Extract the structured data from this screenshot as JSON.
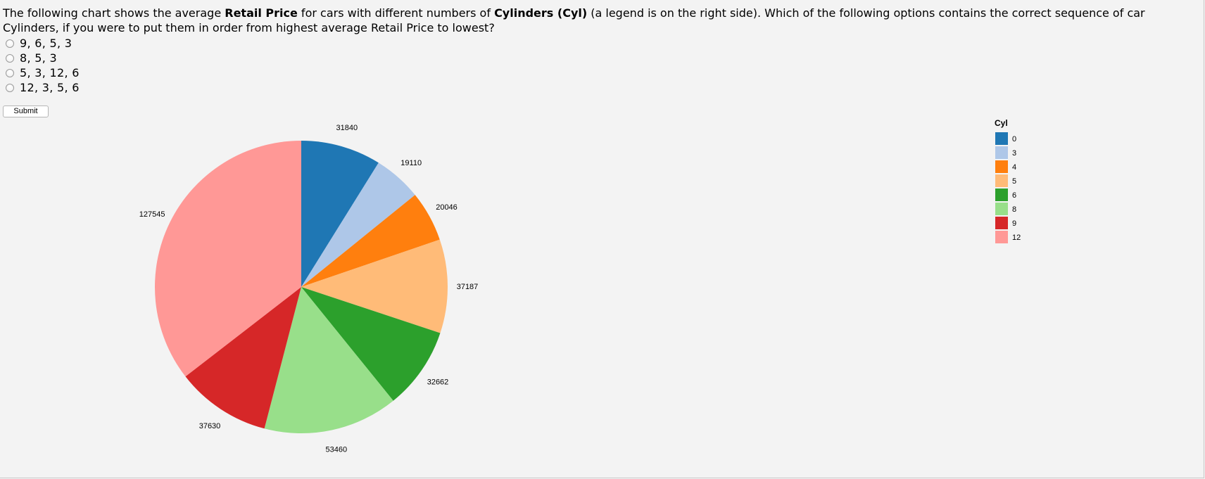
{
  "question": {
    "p1": "The following chart shows the average ",
    "b1": "Retail Price",
    "p2": " for cars with different numbers of ",
    "b2": "Cylinders (Cyl)",
    "p3": " (a legend is on the right side). Which of the following options contains the correct sequence of car Cylinders, if you were to put them in order from highest average Retail Price to lowest?"
  },
  "options": [
    {
      "label": "9, 6, 5, 3"
    },
    {
      "label": "8, 5, 3"
    },
    {
      "label": "5, 3, 12, 6"
    },
    {
      "label": "12, 3, 5, 6"
    }
  ],
  "submit_label": "Submit",
  "chart_data": {
    "type": "pie",
    "categories": [
      "0",
      "3",
      "4",
      "5",
      "6",
      "8",
      "9",
      "12"
    ],
    "values": [
      31840,
      19110,
      20046,
      37187,
      32662,
      53460,
      37630,
      127545
    ],
    "colors": [
      "#1f77b4",
      "#aec7e8",
      "#ff7f0e",
      "#ffbb78",
      "#2ca02c",
      "#98df8a",
      "#d62728",
      "#ff9896"
    ],
    "legend": {
      "title": "Cyl",
      "position": "right"
    },
    "data_labels": [
      "31840",
      "19110",
      "20046",
      "37187",
      "32662",
      "53460",
      "37630",
      "127545"
    ]
  }
}
